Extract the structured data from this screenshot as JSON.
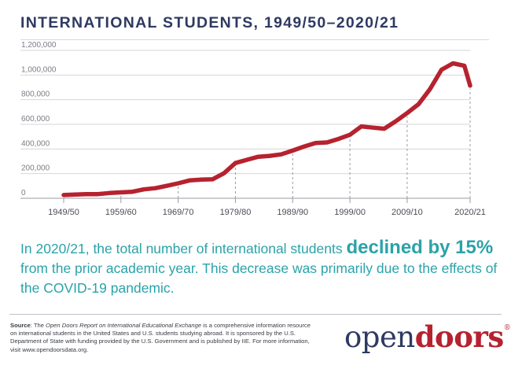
{
  "chart_data": {
    "type": "line",
    "title": "INTERNATIONAL STUDENTS, 1949/50–2020/21",
    "xlabel": "",
    "ylabel": "",
    "ylim": [
      0,
      1200000
    ],
    "yticks": [
      "0",
      "200,000",
      "400,000",
      "600,000",
      "800,000",
      "1,000,000",
      "1,200,000"
    ],
    "xtick_labels": [
      "1949/50",
      "1959/60",
      "1969/70",
      "1979/80",
      "1989/90",
      "1999/00",
      "2009/10",
      "2020/21"
    ],
    "grid": true,
    "line_color": "#b6222f",
    "series": [
      {
        "x": [
          1949,
          1951,
          1953,
          1955,
          1957,
          1959,
          1961,
          1963,
          1965,
          1967,
          1969,
          1971,
          1973,
          1975,
          1977,
          1979,
          1981,
          1983,
          1985,
          1987,
          1989,
          1991,
          1993,
          1995,
          1997,
          1999,
          2001,
          2003,
          2005,
          2007,
          2009,
          2011,
          2013,
          2015,
          2017,
          2019,
          2020
        ],
        "y": [
          26000,
          30000,
          34000,
          34000,
          43000,
          48000,
          53000,
          72000,
          82000,
          101000,
          121000,
          145000,
          151000,
          154000,
          203000,
          286000,
          312000,
          337000,
          344000,
          356000,
          387000,
          420000,
          449000,
          453000,
          481000,
          515000,
          583000,
          573000,
          564000,
          624000,
          691000,
          764000,
          886000,
          1043000,
          1095000,
          1075000,
          914000
        ]
      }
    ]
  },
  "headline": {
    "before": "In 2020/21, the total number of international students",
    "emphasis": "declined by 15%",
    "after": "from the prior academic year. This decrease was primarily due to the effects of the COVID-19 pandemic."
  },
  "source": {
    "label": "Source",
    "intro": ": The",
    "report_title": "Open Doors Report on International Educational Exchange",
    "body": "is a comprehensive information resource on international students in the United States and U.S. students studying abroad. It is sponsored by the U.S. Department of State with funding provided by the U.S. Government and is published by IIE. For more information, visit www.opendoorsdata.org."
  },
  "logo": {
    "part1": "open",
    "part2": "doors",
    "mark": "®",
    "colors": {
      "open": "#2f3a62",
      "doors": "#b6222f"
    }
  }
}
